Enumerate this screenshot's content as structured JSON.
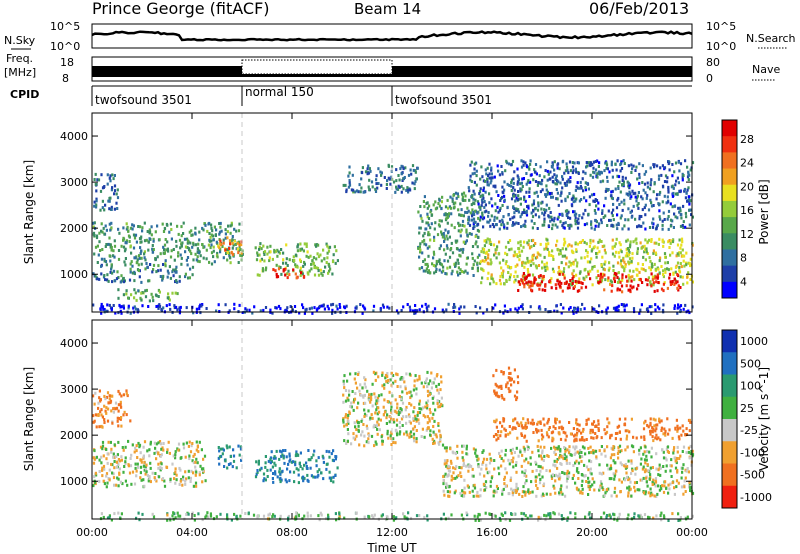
{
  "header": {
    "station": "Prince George (fitACF)",
    "beam": "Beam 14",
    "date": "06/Feb/2013"
  },
  "strips": {
    "nsky": {
      "label": "N.Sky",
      "tick_top": "10^5",
      "tick_bottom": "10^0"
    },
    "nsearch": {
      "label": "N.Search",
      "tick_top": "10^5",
      "tick_bottom": "10^0"
    },
    "freq": {
      "label_line1": "Freq.",
      "label_line2": "[MHz]",
      "tick_top": "18",
      "tick_bottom": "8"
    },
    "nave": {
      "label": "Nave",
      "tick_top": "80",
      "tick_bottom": "0"
    },
    "cpid": {
      "label": "CPID",
      "segments": [
        {
          "name": "twofsound 3501",
          "start_hour": 0,
          "end_hour": 6
        },
        {
          "name": "normal 150",
          "start_hour": 6,
          "end_hour": 12
        },
        {
          "name": "twofsound 3501",
          "start_hour": 12,
          "end_hour": 24
        }
      ]
    }
  },
  "power_colorbar": {
    "label": "Power [dB]",
    "ticks": [
      "4",
      "8",
      "12",
      "16",
      "20",
      "24",
      "28"
    ],
    "colors": [
      "#0000ff",
      "#1e3fa8",
      "#2f6fa0",
      "#3a8c62",
      "#58a84a",
      "#94cc3a",
      "#e8e020",
      "#f0a020",
      "#f07020",
      "#f03010",
      "#e00000"
    ]
  },
  "velocity_colorbar": {
    "label": "Velocity [m s^-1]",
    "ticks": [
      "1000",
      "500",
      "100",
      "25",
      "-25",
      "-100",
      "-500",
      "-1000"
    ],
    "colors": [
      "#1030b0",
      "#2070c0",
      "#2a9a70",
      "#40b040",
      "#c8c8c8",
      "#f0a030",
      "#f07020",
      "#f02010"
    ]
  },
  "chart_data": [
    {
      "type": "heatmap",
      "title": "Power",
      "xlabel": "Time UT",
      "ylabel": "Slant Range [km]",
      "xlim": [
        0,
        24
      ],
      "ylim": [
        180,
        4500
      ],
      "x_ticks": [
        "00:00",
        "04:00",
        "08:00",
        "12:00",
        "16:00",
        "20:00",
        "00:00"
      ],
      "y_ticks": [
        1000,
        2000,
        3000,
        4000
      ],
      "regions": [
        {
          "t0": 0.0,
          "t1": 6.0,
          "r0": 1250,
          "r1": 2150,
          "power_db": 12
        },
        {
          "t0": 5.0,
          "t1": 6.0,
          "r0": 1450,
          "r1": 1850,
          "power_db": 24
        },
        {
          "t0": 0.0,
          "t1": 4.0,
          "r0": 850,
          "r1": 1250,
          "power_db": 10
        },
        {
          "t0": 1.0,
          "t1": 3.5,
          "r0": 450,
          "r1": 700,
          "power_db": 14
        },
        {
          "t0": 0.0,
          "t1": 1.0,
          "r0": 2400,
          "r1": 3200,
          "power_db": 9
        },
        {
          "t0": 6.5,
          "t1": 9.8,
          "r0": 1000,
          "r1": 1700,
          "power_db": 15
        },
        {
          "t0": 7.2,
          "t1": 8.5,
          "r0": 950,
          "r1": 1150,
          "power_db": 28
        },
        {
          "t0": 10.0,
          "t1": 13.0,
          "r0": 2800,
          "r1": 3400,
          "power_db": 9
        },
        {
          "t0": 13.0,
          "t1": 15.5,
          "r0": 1000,
          "r1": 2800,
          "power_db": 12
        },
        {
          "t0": 15.5,
          "t1": 24.0,
          "r0": 800,
          "r1": 1800,
          "power_db": 18
        },
        {
          "t0": 17.0,
          "t1": 23.5,
          "r0": 650,
          "r1": 1050,
          "power_db": 30
        },
        {
          "t0": 15.0,
          "t1": 24.0,
          "r0": 2000,
          "r1": 3500,
          "power_db": 8
        },
        {
          "t0": 0.0,
          "t1": 24.0,
          "r0": 180,
          "r1": 380,
          "power_db": 4
        }
      ]
    },
    {
      "type": "heatmap",
      "title": "Velocity",
      "xlabel": "Time UT",
      "ylabel": "Slant Range [km]",
      "xlim": [
        0,
        24
      ],
      "ylim": [
        180,
        4500
      ],
      "x_ticks": [
        "00:00",
        "04:00",
        "08:00",
        "12:00",
        "16:00",
        "20:00",
        "00:00"
      ],
      "y_ticks": [
        1000,
        2000,
        3000,
        4000
      ],
      "regions": [
        {
          "t0": 0.0,
          "t1": 4.5,
          "r0": 900,
          "r1": 1900,
          "velocity": 0
        },
        {
          "t0": 0.0,
          "t1": 1.5,
          "r0": 2200,
          "r1": 3000,
          "velocity": -100
        },
        {
          "t0": 5.0,
          "t1": 6.0,
          "r0": 1300,
          "r1": 1800,
          "velocity": 300
        },
        {
          "t0": 6.5,
          "t1": 9.8,
          "r0": 1000,
          "r1": 1700,
          "velocity": 300
        },
        {
          "t0": 10.0,
          "t1": 14.0,
          "r0": 1800,
          "r1": 3400,
          "velocity": 0
        },
        {
          "t0": 14.0,
          "t1": 24.0,
          "r0": 700,
          "r1": 1800,
          "velocity": 0
        },
        {
          "t0": 16.0,
          "t1": 24.0,
          "r0": 1900,
          "r1": 2400,
          "velocity": -150
        },
        {
          "t0": 16.0,
          "t1": 17.0,
          "r0": 2800,
          "r1": 3500,
          "velocity": -200
        },
        {
          "t0": 0.0,
          "t1": 24.0,
          "r0": 180,
          "r1": 350,
          "velocity": 60
        }
      ]
    }
  ]
}
